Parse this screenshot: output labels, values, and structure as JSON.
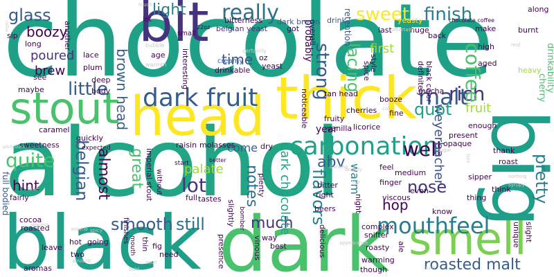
{
  "colors": {
    "yellow": "#fde725",
    "lime": "#a0da39",
    "green": "#4ac16d",
    "teal": "#1fa187",
    "cyan": "#277f8e",
    "blue": "#365c8d",
    "indigo": "#46327e",
    "purple": "#440154",
    "lightgreen": "#7ad151",
    "grey": "#c9c9c9"
  },
  "words": {
    "chocolate": "chocolate",
    "alcohol": "alcohol",
    "black": "black",
    "dark": "dark",
    "head": "head",
    "thick": "thick",
    "bit": "bit",
    "big": "big",
    "stout": "stout",
    "smell": "smell",
    "dark_fruit": "dark fruit",
    "carbonation": "carbonation",
    "mouthfeel": "mouthfeel",
    "really": "really",
    "sweet": "sweet",
    "finish": "finish",
    "coffee": "coffee",
    "glass": "glass",
    "light": "light",
    "boozy": "boozy",
    "lacing": "lacing",
    "strong": "strong",
    "malt": "malt",
    "rich": "rich",
    "quot": "quot",
    "fruit": "fruit",
    "well": "well",
    "pretty": "pretty",
    "little": "little",
    "time": "time",
    "brown_head": "brown head",
    "belgian": "belgian",
    "almost": "almost",
    "great": "great",
    "flavors": "flavors",
    "notes": "notes",
    "dark_chocolate": "dark chocolate",
    "abv": "abv",
    "nose": "nose",
    "lot": "lot",
    "palate": "palate",
    "hop": "hop",
    "warm": "warm",
    "smooth": "smooth",
    "still": "still",
    "much": "much",
    "roasted_malt": "roasted malt",
    "quite": "quite",
    "poured": "poured",
    "brew": "brew",
    "hint": "hint",
    "come": "come",
    "year": "year",
    "first": "first",
    "weyerbacher": "weyerbacher",
    "bitterness": "bitterness",
    "dark_brown": "dark brown",
    "drink": "drink",
    "chocolate_coffee": "chocolate coffee",
    "belgian_yeast": "belgian yeast",
    "got": "got",
    "last": "last",
    "make": "make",
    "huge": "huge",
    "back": "back",
    "yeasty": "yeasty",
    "along": "along",
    "burnt": "burnt",
    "high": "high",
    "aged": "aged",
    "heavy": "heavy",
    "cherry": "cherry",
    "drinkability": "drinkability",
    "style": "style",
    "spice": "spice",
    "definitely": "definitely",
    "black_color": "black color",
    "retention": "retention",
    "probably": "probably",
    "overall": "overall",
    "creamy": "creamy",
    "yeast": "yeast",
    "oz": "oz",
    "drinkable": "drinkable",
    "interesting": "interesting",
    "age": "age",
    "plum": "plum",
    "lace": "lace",
    "long": "long",
    "see": "see",
    "sip": "sip",
    "another": "another",
    "full_bodied": "full bodied",
    "deep": "deep",
    "body": "body",
    "maybe": "maybe",
    "caramel": "caramel",
    "quickly": "quickly",
    "sweetness": "sweetness",
    "expected": "expected",
    "fairly": "fairly",
    "cocoa": "cocoa",
    "roasted": "roasted",
    "hot": "hot",
    "going": "going",
    "two": "two",
    "leave": "leave",
    "aromas": "aromas",
    "fig": "fig",
    "need": "need",
    "thin": "thin",
    "presence": "presence",
    "way": "way",
    "best": "best",
    "imperial_stout": "imperial stout",
    "raisin": "raisin",
    "molasses": "molasses",
    "full": "full",
    "tastes": "tastes",
    "plenty": "plenty",
    "slightly": "slightly",
    "vinous": "vinous",
    "beers": "beers",
    "bitter": "bitter",
    "right": "right",
    "finger": "finger",
    "viscous": "viscous",
    "feel": "feel",
    "fruity": "fruity",
    "cherries": "cherries",
    "mocha": "mocha",
    "tan_head": "tan head",
    "noticeable": "noticeable",
    "booze": "booze",
    "vanilla": "vanilla",
    "licorice": "licorice",
    "fine": "fine",
    "enough": "enough",
    "present": "present",
    "opaque": "opaque",
    "thank": "thank",
    "roast": "roast",
    "sipper": "sipper",
    "think": "think",
    "thing": "thing",
    "appearance": "appearance",
    "know": "know",
    "snifter": "snifter",
    "complex": "complex",
    "delicious": "delicious",
    "roasty": "roasty",
    "warming": "warming",
    "though": "though",
    "ale": "ale",
    "night": "night",
    "medium": "medium",
    "even": "even",
    "unique": "unique",
    "slight": "slight",
    "bubble": "bubble",
    "warmth": "warmth",
    "small": "small",
    "certainly": "certainly",
    "let": "let",
    "touch": "touch",
    "aftertaste": "aftertaste",
    "real": "real",
    "cellar": "cellar",
    "oz22": "22oz",
    "pitch_black": "pitch black",
    "fade": "fade",
    "start": "start",
    "better": "better",
    "without": "without",
    "finishes": "finishes",
    "mouth": "mouth",
    "bomber": "bomber",
    "bold": "bold",
    "sipping": "sipping",
    "spicy": "spicy",
    "around": "around",
    "amount": "amount",
    "soon": "soon",
    "glad": "glad",
    "color": "color",
    "sugar": "sugar",
    "brandy": "brandy",
    "tap": "tap",
    "nothing": "nothing",
    "syrupy": "syrupy",
    "burn": "burn",
    "banana": "banana",
    "dry": "dry",
    "faint": "faint"
  }
}
